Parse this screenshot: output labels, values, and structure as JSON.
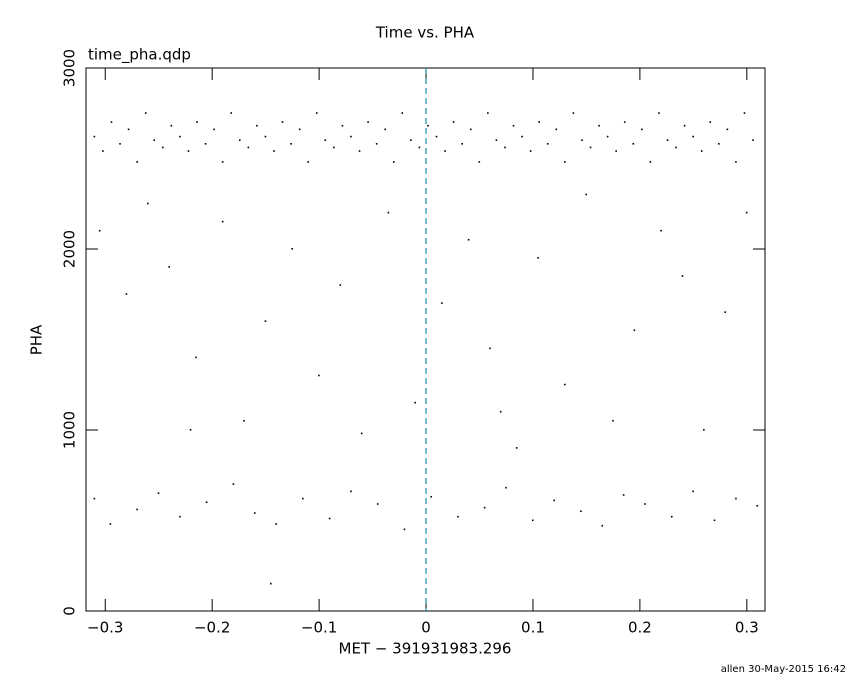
{
  "chart_data": {
    "type": "scatter",
    "title": "Time vs. PHA",
    "subtitle": "time_pha.qdp",
    "x_label": "MET − 391931983.296",
    "y_label": "PHA",
    "footer": "allen 30-May-2015 16:42",
    "color": "#000000",
    "vline": 0,
    "vline_color": "#1a8cb0",
    "xlim": [
      -0.318,
      0.317
    ],
    "xticks": [
      {
        "value": -0.3,
        "label": "−0.3"
      },
      {
        "value": -0.2,
        "label": "−0.2"
      },
      {
        "value": -0.1,
        "label": "−0.1"
      },
      0,
      0.1,
      0.2,
      0.3
    ],
    "ylim": [
      0,
      3000
    ],
    "yticks": [
      0,
      1000,
      2000,
      3000
    ],
    "x": [
      -0.31,
      -0.302,
      -0.294,
      -0.286,
      -0.278,
      -0.27,
      -0.262,
      -0.254,
      -0.246,
      -0.238,
      -0.23,
      -0.222,
      -0.214,
      -0.206,
      -0.198,
      -0.19,
      -0.182,
      -0.174,
      -0.166,
      -0.158,
      -0.15,
      -0.142,
      -0.134,
      -0.126,
      -0.118,
      -0.11,
      -0.102,
      -0.094,
      -0.086,
      -0.078,
      -0.07,
      -0.062,
      -0.054,
      -0.046,
      -0.038,
      -0.03,
      -0.022,
      -0.014,
      -0.006,
      0.002,
      0.01,
      0.018,
      0.026,
      0.034,
      0.042,
      0.05,
      0.058,
      0.066,
      0.074,
      0.082,
      0.09,
      0.098,
      0.106,
      0.114,
      0.122,
      0.13,
      0.138,
      0.146,
      0.154,
      0.162,
      0.17,
      0.178,
      0.186,
      0.194,
      0.202,
      0.21,
      0.218,
      0.226,
      0.234,
      0.242,
      0.25,
      0.258,
      0.266,
      0.274,
      0.282,
      0.29,
      0.298,
      0.306,
      -0.305,
      -0.28,
      -0.26,
      -0.24,
      -0.215,
      -0.19,
      -0.17,
      -0.15,
      -0.125,
      -0.1,
      -0.08,
      -0.06,
      -0.035,
      -0.01,
      0.015,
      0.04,
      0.06,
      0.085,
      0.105,
      0.13,
      0.15,
      0.175,
      0.195,
      0.22,
      0.24,
      0.26,
      0.28,
      0.3,
      -0.22,
      0.07,
      -0.31,
      -0.295,
      -0.27,
      -0.25,
      -0.23,
      -0.205,
      -0.18,
      -0.16,
      -0.14,
      -0.115,
      -0.09,
      -0.07,
      -0.045,
      -0.02,
      0.005,
      0.03,
      0.055,
      0.075,
      0.1,
      0.12,
      0.145,
      0.165,
      0.185,
      0.205,
      0.23,
      0.25,
      0.27,
      0.29,
      0.31,
      -0.145
    ],
    "values": [
      2620,
      2540,
      2700,
      2580,
      2660,
      2480,
      2750,
      2600,
      2560,
      2680,
      2620,
      2540,
      2700,
      2580,
      2660,
      2480,
      2750,
      2600,
      2560,
      2680,
      2620,
      2540,
      2700,
      2580,
      2660,
      2480,
      2750,
      2600,
      2560,
      2680,
      2620,
      2540,
      2700,
      2580,
      2660,
      2480,
      2750,
      2600,
      2560,
      2680,
      2620,
      2540,
      2700,
      2580,
      2660,
      2480,
      2750,
      2600,
      2560,
      2680,
      2620,
      2540,
      2700,
      2580,
      2660,
      2480,
      2750,
      2600,
      2560,
      2680,
      2620,
      2540,
      2700,
      2580,
      2660,
      2480,
      2750,
      2600,
      2560,
      2680,
      2620,
      2540,
      2700,
      2580,
      2660,
      2480,
      2750,
      2600,
      2100,
      1750,
      2250,
      1900,
      1400,
      2150,
      1050,
      1600,
      2000,
      1300,
      1800,
      980,
      2200,
      1150,
      1700,
      2050,
      1450,
      900,
      1950,
      1250,
      2300,
      1050,
      1550,
      2100,
      1850,
      1000,
      1650,
      2200,
      1000,
      1100,
      620,
      480,
      560,
      650,
      520,
      600,
      700,
      540,
      480,
      620,
      510,
      660,
      590,
      450,
      630,
      520,
      570,
      680,
      500,
      610,
      550,
      470,
      640,
      590,
      520,
      660,
      500,
      620,
      580,
      150
    ]
  }
}
